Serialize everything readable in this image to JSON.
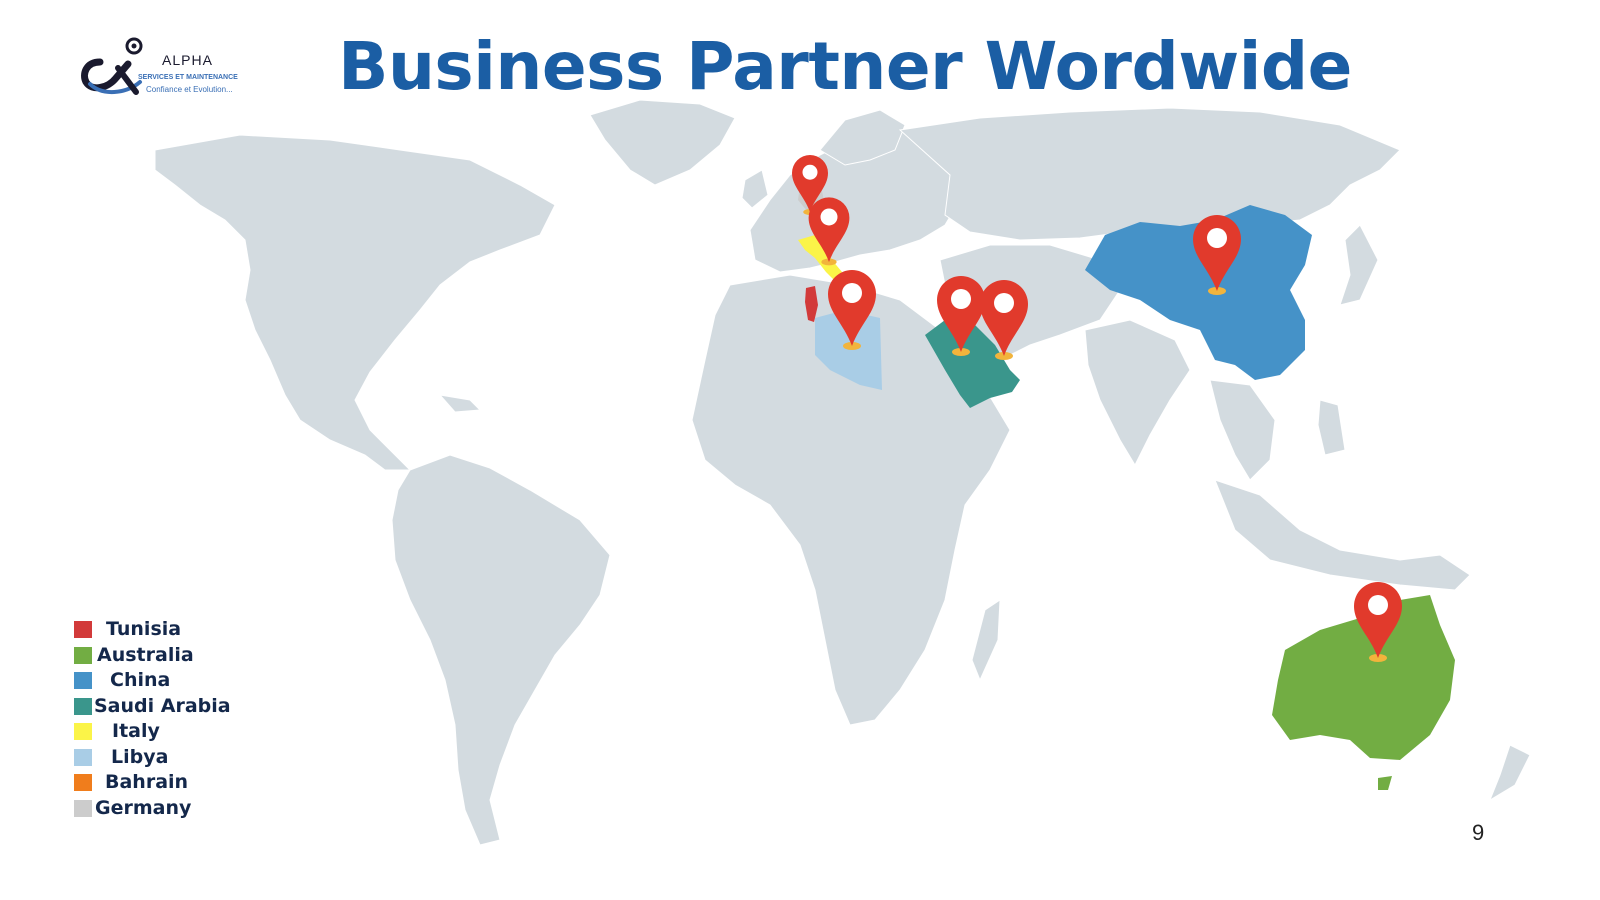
{
  "title": "Business Partner Wordwide",
  "logo": {
    "name": "ALPHA",
    "subtitle": "SERVICES ET MAINTENANCE",
    "tagline": "Confiance et Evolution..."
  },
  "legend": [
    {
      "label": "Tunisia",
      "color": "#d23a3a"
    },
    {
      "label": "Australia",
      "color": "#72ad43"
    },
    {
      "label": "China",
      "color": "#4592c8"
    },
    {
      "label": "Saudi Arabia",
      "color": "#3a968c"
    },
    {
      "label": "Italy",
      "color": "#fbf448"
    },
    {
      "label": "Libya",
      "color": "#a9cde6"
    },
    {
      "label": "Bahrain",
      "color": "#f07d1c"
    },
    {
      "label": "Germany",
      "color": "#cccccc"
    }
  ],
  "colors": {
    "land": "#d3dbe0",
    "pin": "#e13a2c",
    "pin_base": "#f2b43c",
    "title": "#1b5ea4"
  },
  "page_number": "9"
}
